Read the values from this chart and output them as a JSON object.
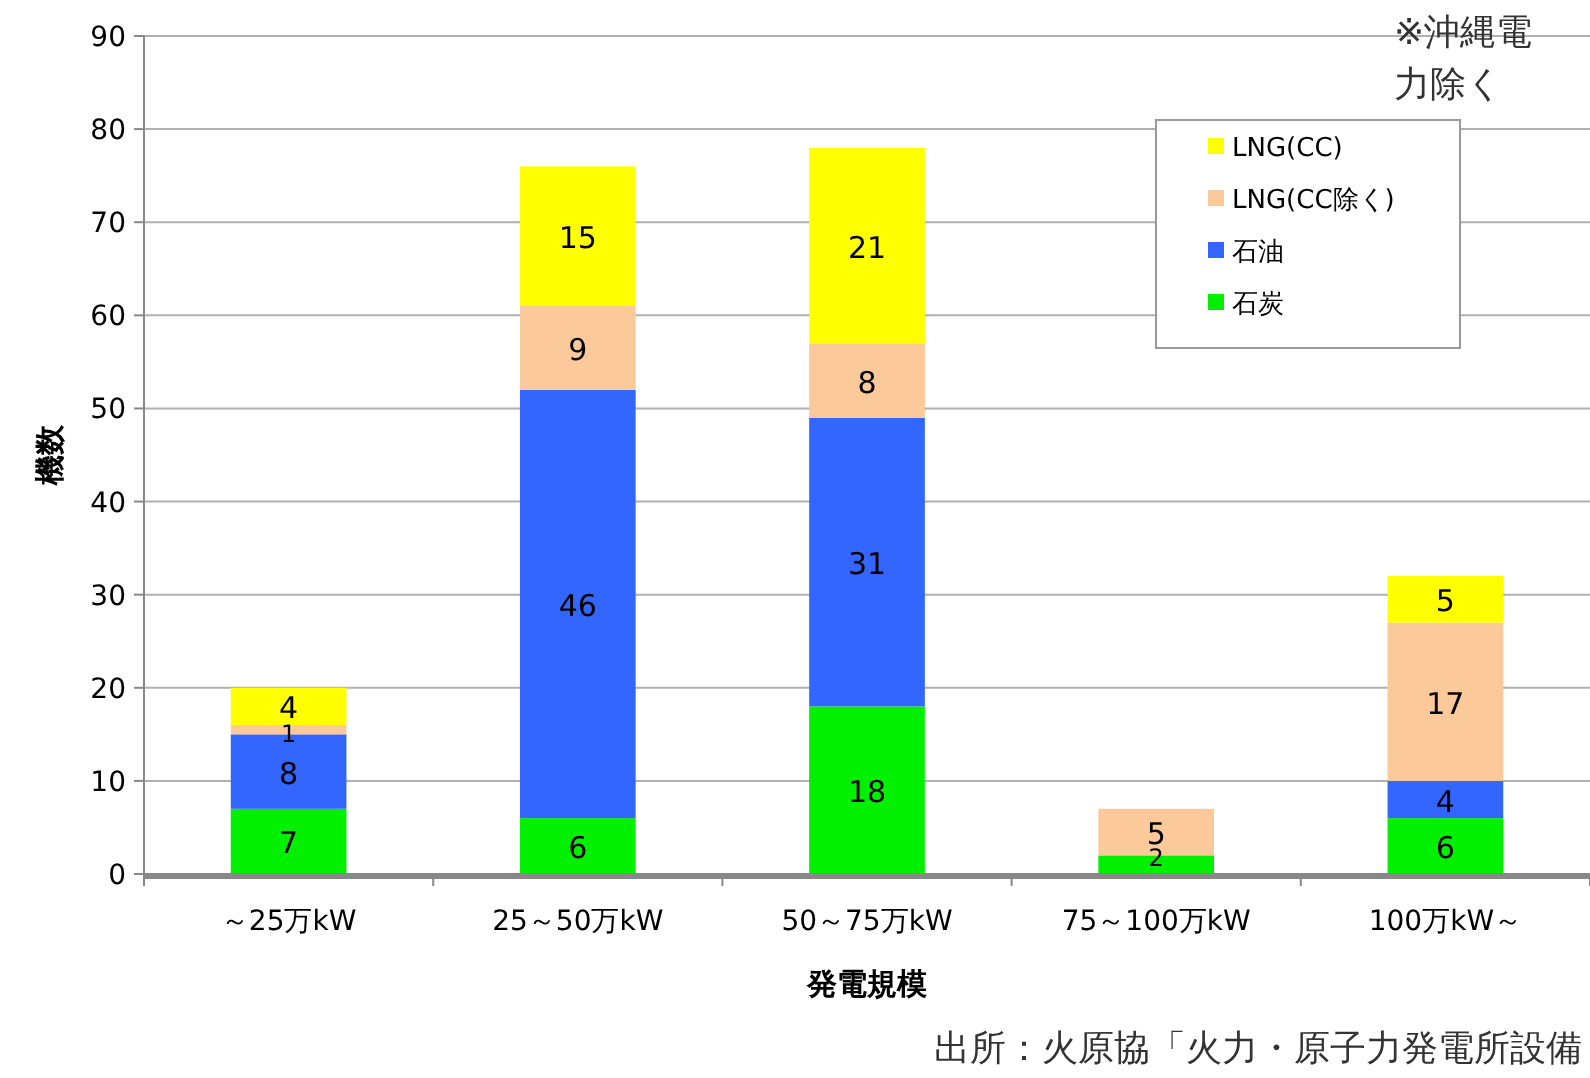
{
  "chart_data": {
    "type": "bar",
    "stacked": true,
    "data_labels": true,
    "grid": "y",
    "legend": "top right",
    "xlabel": "発電規模",
    "ylabel": "機数",
    "categories": [
      "～25万kW",
      "25～50万kW",
      "50～75万kW",
      "75～100万kW",
      "100万kW～"
    ],
    "ylim": [
      0,
      90
    ],
    "yticks": [
      0,
      10,
      20,
      30,
      40,
      50,
      60,
      70,
      80,
      90
    ],
    "series": [
      {
        "name": "石炭",
        "color": "#00f000",
        "values": [
          7,
          6,
          18,
          2,
          6
        ]
      },
      {
        "name": "石油",
        "color": "#3366ff",
        "values": [
          8,
          46,
          31,
          null,
          4
        ]
      },
      {
        "name": "LNG(CC除く)",
        "color": "#fcc99a",
        "values": [
          1,
          9,
          8,
          5,
          17
        ]
      },
      {
        "name": "LNG(CC)",
        "color": "#ffff00",
        "values": [
          4,
          15,
          21,
          null,
          5
        ]
      }
    ],
    "annotations": [
      "※沖縄電力除く",
      "出所：火原協「火力・原子力発電所設備"
    ]
  }
}
